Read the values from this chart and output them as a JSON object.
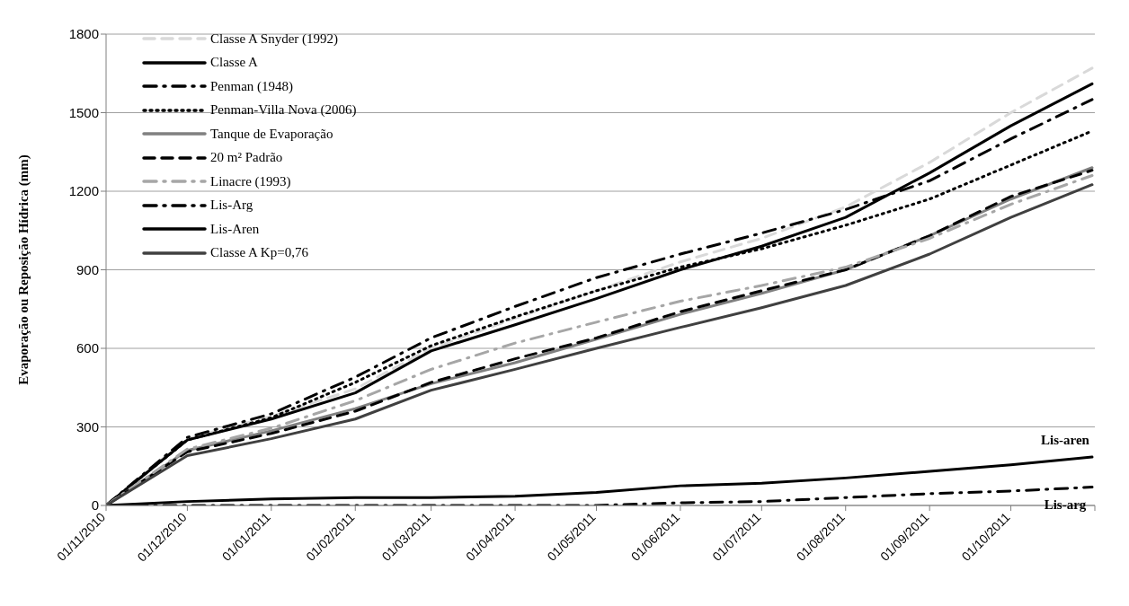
{
  "chart_data": {
    "type": "line",
    "ylabel": "Evaporação ou Reposição Hídrica (mm)",
    "x": [
      "2010-11-01",
      "2010-12-01",
      "2011-01-01",
      "2011-02-01",
      "2011-03-01",
      "2011-04-01",
      "2011-05-01",
      "2011-06-01",
      "2011-07-01",
      "2011-08-01",
      "2011-09-01",
      "2011-10-01",
      "2011-10-31"
    ],
    "series": [
      {
        "name": "Classe A Snyder (1992)",
        "color": "#d9d9d9",
        "line_style": "dashed",
        "values": [
          0,
          255,
          340,
          445,
          600,
          715,
          820,
          930,
          1020,
          1140,
          1310,
          1500,
          1670
        ]
      },
      {
        "name": "Classe A",
        "color": "#000000",
        "line_style": "solid",
        "values": [
          0,
          250,
          330,
          430,
          590,
          690,
          790,
          900,
          990,
          1100,
          1270,
          1450,
          1610
        ]
      },
      {
        "name": "Penman (1948)",
        "color": "#000000",
        "line_style": "dashdot",
        "values": [
          0,
          260,
          350,
          490,
          640,
          760,
          870,
          960,
          1040,
          1130,
          1240,
          1400,
          1550
        ]
      },
      {
        "name": "Penman-Villa Nova (2006)",
        "color": "#000000",
        "line_style": "dotted",
        "values": [
          0,
          250,
          335,
          470,
          610,
          720,
          820,
          910,
          980,
          1070,
          1170,
          1300,
          1430
        ]
      },
      {
        "name": "Tanque de Evaporação",
        "color": "#808080",
        "line_style": "solid",
        "values": [
          0,
          210,
          285,
          370,
          465,
          545,
          635,
          730,
          810,
          900,
          1030,
          1170,
          1290
        ]
      },
      {
        "name": "20 m² Padrão",
        "color": "#000000",
        "line_style": "dashed",
        "values": [
          0,
          205,
          275,
          360,
          470,
          560,
          640,
          740,
          820,
          900,
          1030,
          1180,
          1280
        ]
      },
      {
        "name": "Linacre (1993)",
        "color": "#a6a6a6",
        "line_style": "dashdot",
        "values": [
          0,
          215,
          295,
          400,
          520,
          620,
          700,
          780,
          840,
          910,
          1020,
          1150,
          1260
        ]
      },
      {
        "name": "Lis-Arg",
        "color": "#000000",
        "line_style": "dashdot",
        "values": [
          0,
          0,
          0,
          0,
          0,
          0,
          0,
          10,
          15,
          30,
          45,
          55,
          70
        ]
      },
      {
        "name": "Lis-Aren",
        "color": "#000000",
        "line_style": "solid",
        "values": [
          0,
          15,
          25,
          30,
          30,
          35,
          50,
          75,
          85,
          105,
          130,
          155,
          185
        ]
      },
      {
        "name": "Classe A Kp=0,76",
        "color": "#404040",
        "line_style": "solid",
        "values": [
          0,
          190,
          255,
          330,
          440,
          520,
          600,
          680,
          755,
          840,
          960,
          1100,
          1225
        ]
      }
    ],
    "xlim": [
      "2010-11-01",
      "2011-11-01"
    ],
    "xticks": [
      {
        "value": "2010-11-01",
        "label": "01/11/2010"
      },
      {
        "value": "2010-12-01",
        "label": "01/12/2010"
      },
      {
        "value": "2011-01-01",
        "label": "01/01/2011"
      },
      {
        "value": "2011-02-01",
        "label": "01/02/2011"
      },
      {
        "value": "2011-03-01",
        "label": "01/03/2011"
      },
      {
        "value": "2011-04-01",
        "label": "01/04/2011"
      },
      {
        "value": "2011-05-01",
        "label": "01/05/2011"
      },
      {
        "value": "2011-06-01",
        "label": "01/06/2011"
      },
      {
        "value": "2011-07-01",
        "label": "01/07/2011"
      },
      {
        "value": "2011-08-01",
        "label": "01/08/2011"
      },
      {
        "value": "2011-09-01",
        "label": "01/09/2011"
      },
      {
        "value": "2011-10-01",
        "label": "01/10/2011"
      },
      {
        "value": "2011-11-01",
        "label": null
      }
    ],
    "ylim": [
      0,
      1800
    ],
    "yticks": [
      0,
      300,
      600,
      900,
      1200,
      1500,
      1800
    ],
    "grid": "y",
    "legend": "top left",
    "marker": "none",
    "annotations": [
      {
        "text": "Lis-aren",
        "x": "2011-10-31",
        "y": 185
      },
      {
        "text": "Lis-arg",
        "x": "2011-10-31",
        "y": 70
      }
    ]
  }
}
